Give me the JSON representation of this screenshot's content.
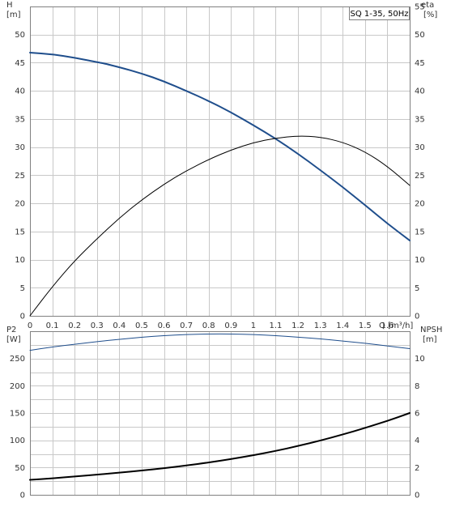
{
  "chart_data": [
    {
      "type": "line",
      "panel": "top",
      "title": "SQ 1-35, 50Hz",
      "xlabel": "Q [m³/h]",
      "ylabel_left": [
        "H",
        "[m]"
      ],
      "ylabel_right": [
        "eta",
        "[%]"
      ],
      "xlim": [
        0,
        1.7
      ],
      "ylim_left": [
        0,
        55
      ],
      "ylim_right": [
        0,
        55
      ],
      "x_ticks": [
        "0",
        "0.1",
        "0.2",
        "0.3",
        "0.4",
        "0.5",
        "0.6",
        "0.7",
        "0.8",
        "0.9",
        "1",
        "1.1",
        "1.2",
        "1.3",
        "1.4",
        "1.5",
        "1.6"
      ],
      "y_ticks_left": [
        "0",
        "5",
        "10",
        "15",
        "20",
        "25",
        "30",
        "35",
        "40",
        "45",
        "50"
      ],
      "y_ticks_right": [
        "0",
        "5",
        "10",
        "15",
        "20",
        "25",
        "30",
        "35",
        "40",
        "45",
        "50",
        "55"
      ],
      "grid": true,
      "legend": "top-right",
      "series": [
        {
          "axis": "left",
          "color": "#1f4e8c",
          "x": [
            0,
            0.1,
            0.2,
            0.3,
            0.33,
            0.4,
            0.5,
            0.6,
            0.7,
            0.8,
            0.9,
            1.0,
            1.1,
            1.2,
            1.3,
            1.4,
            1.5,
            1.6,
            1.7
          ],
          "values": [
            46.8,
            46.5,
            45.9,
            45.1,
            44.9,
            44.2,
            43.1,
            41.7,
            40.0,
            38.2,
            36.2,
            33.9,
            31.5,
            28.8,
            25.9,
            22.9,
            19.7,
            16.4,
            13.4
          ]
        },
        {
          "axis": "right",
          "color": "#000000",
          "x": [
            0,
            0.1,
            0.2,
            0.3,
            0.4,
            0.5,
            0.6,
            0.7,
            0.8,
            0.9,
            1.0,
            1.1,
            1.2,
            1.3,
            1.4,
            1.5,
            1.6,
            1.7
          ],
          "values": [
            0,
            5.2,
            9.8,
            13.7,
            17.4,
            20.6,
            23.4,
            25.8,
            27.8,
            29.5,
            30.8,
            31.6,
            32.0,
            31.8,
            30.9,
            29.2,
            26.6,
            23.2
          ]
        }
      ]
    },
    {
      "type": "line",
      "panel": "bottom",
      "ylabel_left": [
        "P2",
        "[W]"
      ],
      "ylabel_right": [
        "NPSH",
        "[m]"
      ],
      "xlim": [
        0,
        1.7
      ],
      "ylim_left": [
        0,
        300
      ],
      "ylim_right": [
        0,
        12
      ],
      "y_ticks_left": [
        "0",
        "50",
        "100",
        "150",
        "200",
        "250"
      ],
      "y_ticks_right": [
        "0",
        "2",
        "4",
        "6",
        "8",
        "10"
      ],
      "grid": true,
      "series": [
        {
          "axis": "left",
          "color": "#1f4e8c",
          "x": [
            0,
            0.1,
            0.2,
            0.3,
            0.4,
            0.5,
            0.6,
            0.7,
            0.8,
            0.9,
            1.0,
            1.1,
            1.2,
            1.3,
            1.4,
            1.5,
            1.6,
            1.7
          ],
          "values": [
            265,
            271,
            276,
            281,
            285,
            289,
            292,
            294,
            295,
            295,
            294,
            292,
            289,
            286,
            282,
            278,
            273,
            268
          ]
        },
        {
          "axis": "right",
          "color": "#000000",
          "x": [
            0,
            0.1,
            0.2,
            0.3,
            0.4,
            0.5,
            0.6,
            0.7,
            0.8,
            0.9,
            1.0,
            1.1,
            1.2,
            1.3,
            1.4,
            1.5,
            1.6,
            1.7
          ],
          "values": [
            1.1,
            1.2,
            1.35,
            1.48,
            1.62,
            1.78,
            1.95,
            2.15,
            2.37,
            2.62,
            2.9,
            3.22,
            3.58,
            3.98,
            4.42,
            4.9,
            5.42,
            6.0
          ]
        }
      ]
    }
  ]
}
